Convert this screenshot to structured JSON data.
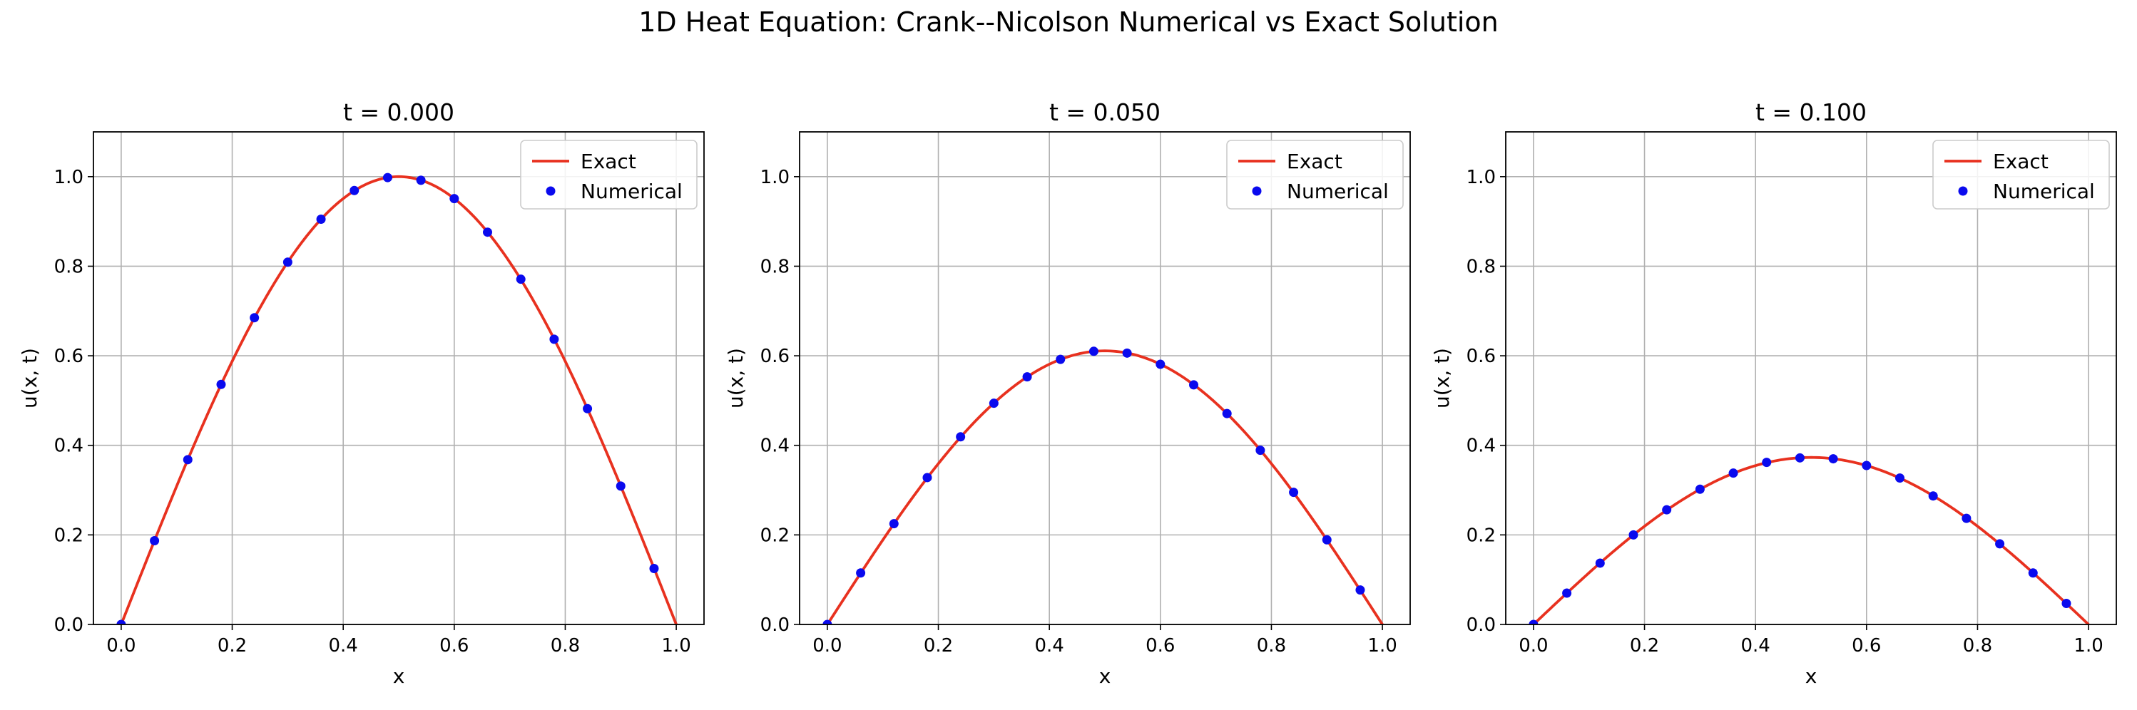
{
  "figure_title": "1D Heat Equation: Crank--Nicolson Numerical vs Exact Solution",
  "colors": {
    "exact": "#e8311f",
    "numerical": "#0a0aee",
    "grid": "#b0b0b0"
  },
  "chart_data": [
    {
      "type": "line",
      "title": "t = 0.000",
      "xlabel": "x",
      "ylabel": "u(x, t)",
      "xlim": [
        -0.05,
        1.05
      ],
      "ylim": [
        0.0,
        1.1
      ],
      "xticks": [
        0.0,
        0.2,
        0.4,
        0.6,
        0.8,
        1.0
      ],
      "yticks": [
        0.0,
        0.2,
        0.4,
        0.6,
        0.8,
        1.0
      ],
      "xtick_labels": [
        "0.0",
        "0.2",
        "0.4",
        "0.6",
        "0.8",
        "1.0"
      ],
      "ytick_labels": [
        "0.0",
        "0.2",
        "0.4",
        "0.6",
        "0.8",
        "1.0"
      ],
      "grid": true,
      "legend_position": "top-right",
      "series": [
        {
          "name": "Exact",
          "style": "line",
          "amplitude": 1.0
        },
        {
          "name": "Numerical",
          "style": "markers",
          "x": [
            0.0,
            0.06,
            0.12,
            0.18,
            0.24,
            0.3,
            0.36,
            0.42,
            0.48,
            0.54,
            0.6,
            0.66,
            0.72,
            0.78,
            0.84,
            0.9,
            0.96
          ],
          "y": [
            0.0,
            0.187,
            0.368,
            0.536,
            0.685,
            0.809,
            0.905,
            0.969,
            0.998,
            0.992,
            0.951,
            0.876,
            0.771,
            0.637,
            0.482,
            0.309,
            0.125
          ]
        }
      ]
    },
    {
      "type": "line",
      "title": "t = 0.050",
      "xlabel": "x",
      "ylabel": "u(x, t)",
      "xlim": [
        -0.05,
        1.05
      ],
      "ylim": [
        0.0,
        1.1
      ],
      "xticks": [
        0.0,
        0.2,
        0.4,
        0.6,
        0.8,
        1.0
      ],
      "yticks": [
        0.0,
        0.2,
        0.4,
        0.6,
        0.8,
        1.0
      ],
      "xtick_labels": [
        "0.0",
        "0.2",
        "0.4",
        "0.6",
        "0.8",
        "1.0"
      ],
      "ytick_labels": [
        "0.0",
        "0.2",
        "0.4",
        "0.6",
        "0.8",
        "1.0"
      ],
      "grid": true,
      "legend_position": "top-right",
      "series": [
        {
          "name": "Exact",
          "style": "line",
          "amplitude": 0.611
        },
        {
          "name": "Numerical",
          "style": "markers",
          "x": [
            0.0,
            0.06,
            0.12,
            0.18,
            0.24,
            0.3,
            0.36,
            0.42,
            0.48,
            0.54,
            0.6,
            0.66,
            0.72,
            0.78,
            0.84,
            0.9,
            0.96
          ],
          "y": [
            0.0,
            0.115,
            0.225,
            0.328,
            0.419,
            0.494,
            0.553,
            0.592,
            0.61,
            0.606,
            0.581,
            0.535,
            0.471,
            0.389,
            0.295,
            0.189,
            0.077
          ]
        }
      ]
    },
    {
      "type": "line",
      "title": "t = 0.100",
      "xlabel": "x",
      "ylabel": "u(x, t)",
      "xlim": [
        -0.05,
        1.05
      ],
      "ylim": [
        0.0,
        1.1
      ],
      "xticks": [
        0.0,
        0.2,
        0.4,
        0.6,
        0.8,
        1.0
      ],
      "yticks": [
        0.0,
        0.2,
        0.4,
        0.6,
        0.8,
        1.0
      ],
      "xtick_labels": [
        "0.0",
        "0.2",
        "0.4",
        "0.6",
        "0.8",
        "1.0"
      ],
      "ytick_labels": [
        "0.0",
        "0.2",
        "0.4",
        "0.6",
        "0.8",
        "1.0"
      ],
      "grid": true,
      "legend_position": "top-right",
      "series": [
        {
          "name": "Exact",
          "style": "line",
          "amplitude": 0.373
        },
        {
          "name": "Numerical",
          "style": "markers",
          "x": [
            0.0,
            0.06,
            0.12,
            0.18,
            0.24,
            0.3,
            0.36,
            0.42,
            0.48,
            0.54,
            0.6,
            0.66,
            0.72,
            0.78,
            0.84,
            0.9,
            0.96
          ],
          "y": [
            0.0,
            0.07,
            0.137,
            0.2,
            0.256,
            0.302,
            0.338,
            0.362,
            0.372,
            0.37,
            0.355,
            0.327,
            0.287,
            0.237,
            0.18,
            0.115,
            0.047
          ]
        }
      ]
    }
  ]
}
